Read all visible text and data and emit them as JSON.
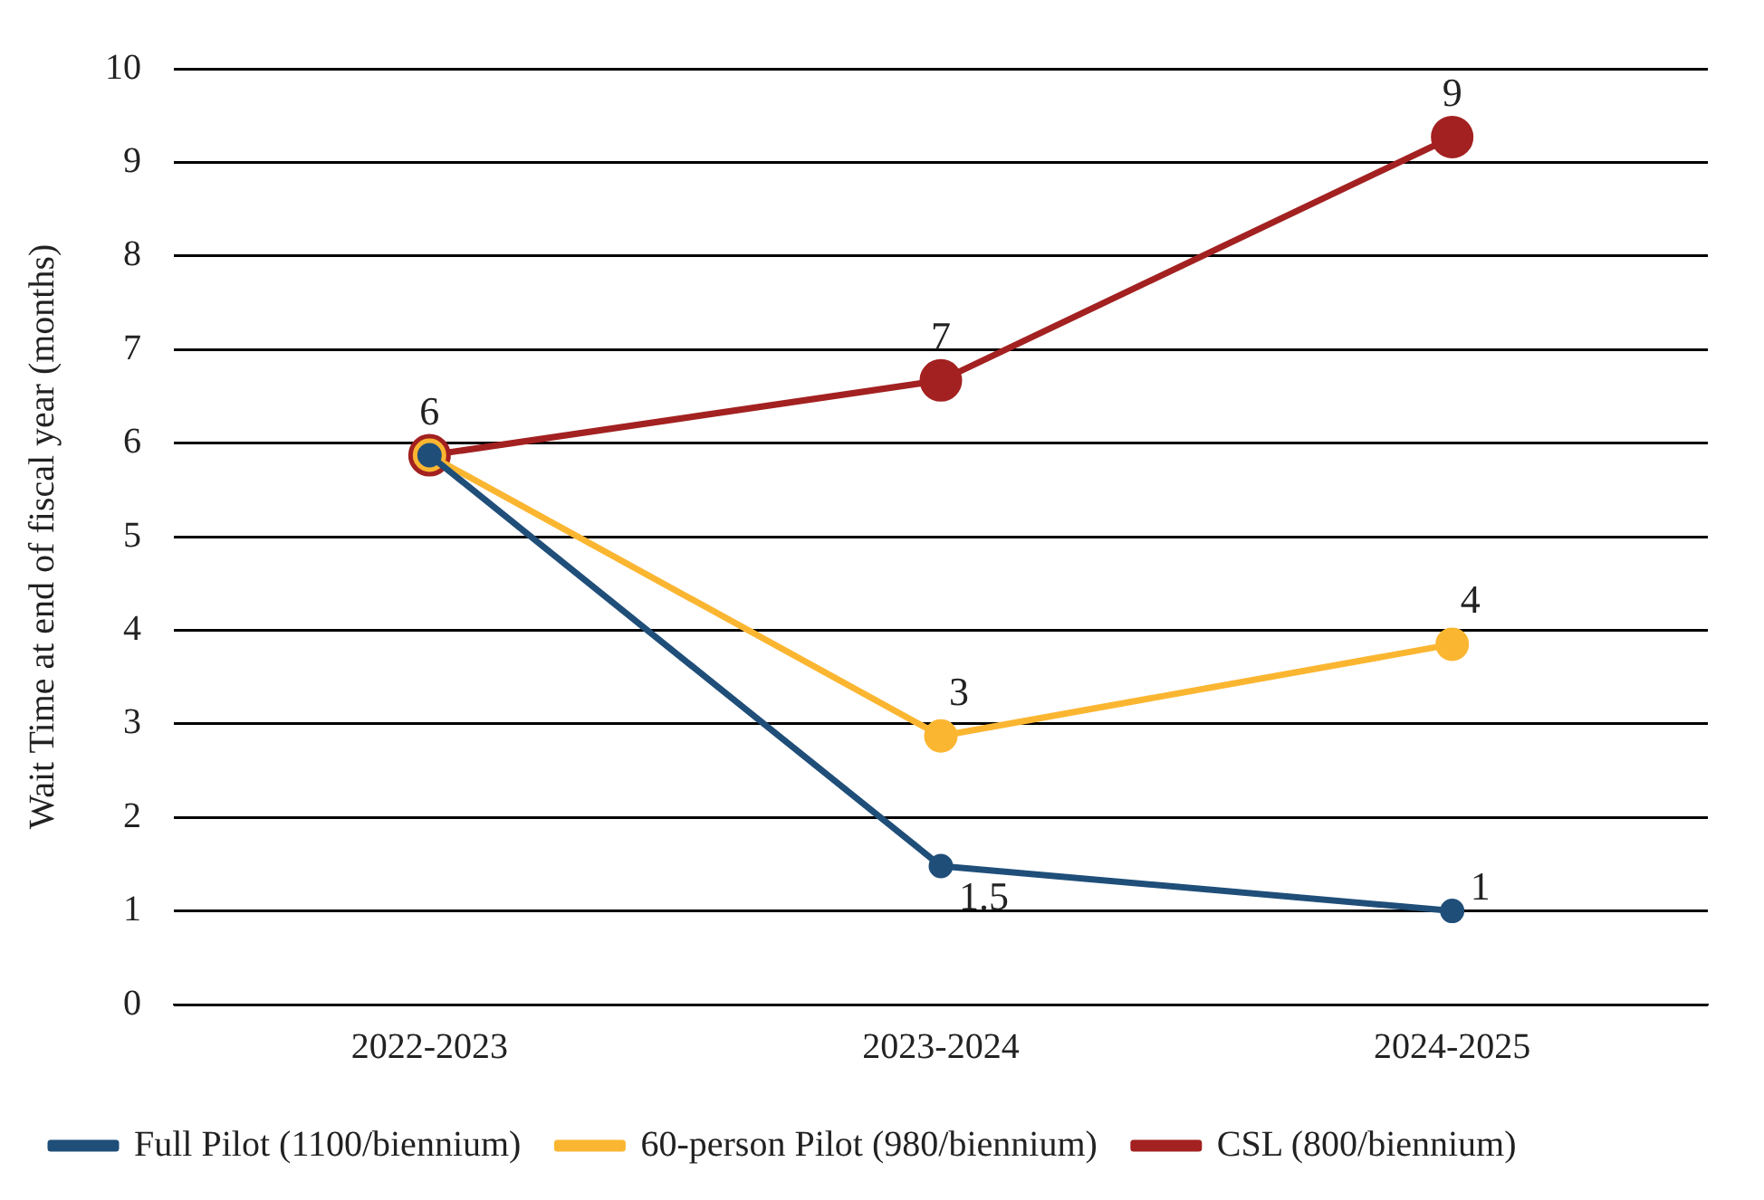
{
  "chart_data": {
    "type": "line",
    "ylabel": "Wait Time at end of fiscal year (months)",
    "categories": [
      "2022-2023",
      "2023-2024",
      "2024-2025"
    ],
    "series": [
      {
        "name": "CSL (800/biennium)",
        "color": "#a32121",
        "values": [
          5.87,
          6.67,
          9.27
        ],
        "value_labels": [
          "6",
          "7",
          "9"
        ]
      },
      {
        "name": "60-person Pilot (980/biennium)",
        "color": "#fbb631",
        "values": [
          5.87,
          2.87,
          3.85
        ],
        "value_labels": [
          null,
          "3",
          "4"
        ]
      },
      {
        "name": "Full Pilot (1100/biennium)",
        "color": "#1f4e79",
        "values": [
          5.87,
          1.48,
          1.0
        ],
        "value_labels": [
          null,
          "1.5",
          "1"
        ]
      }
    ],
    "ylim": [
      0,
      10
    ],
    "yticks": [
      0,
      1,
      2,
      3,
      4,
      5,
      6,
      7,
      8,
      9,
      10
    ],
    "grid": "y",
    "legend": "bottom",
    "marker": "circle",
    "line_style": "solid"
  }
}
